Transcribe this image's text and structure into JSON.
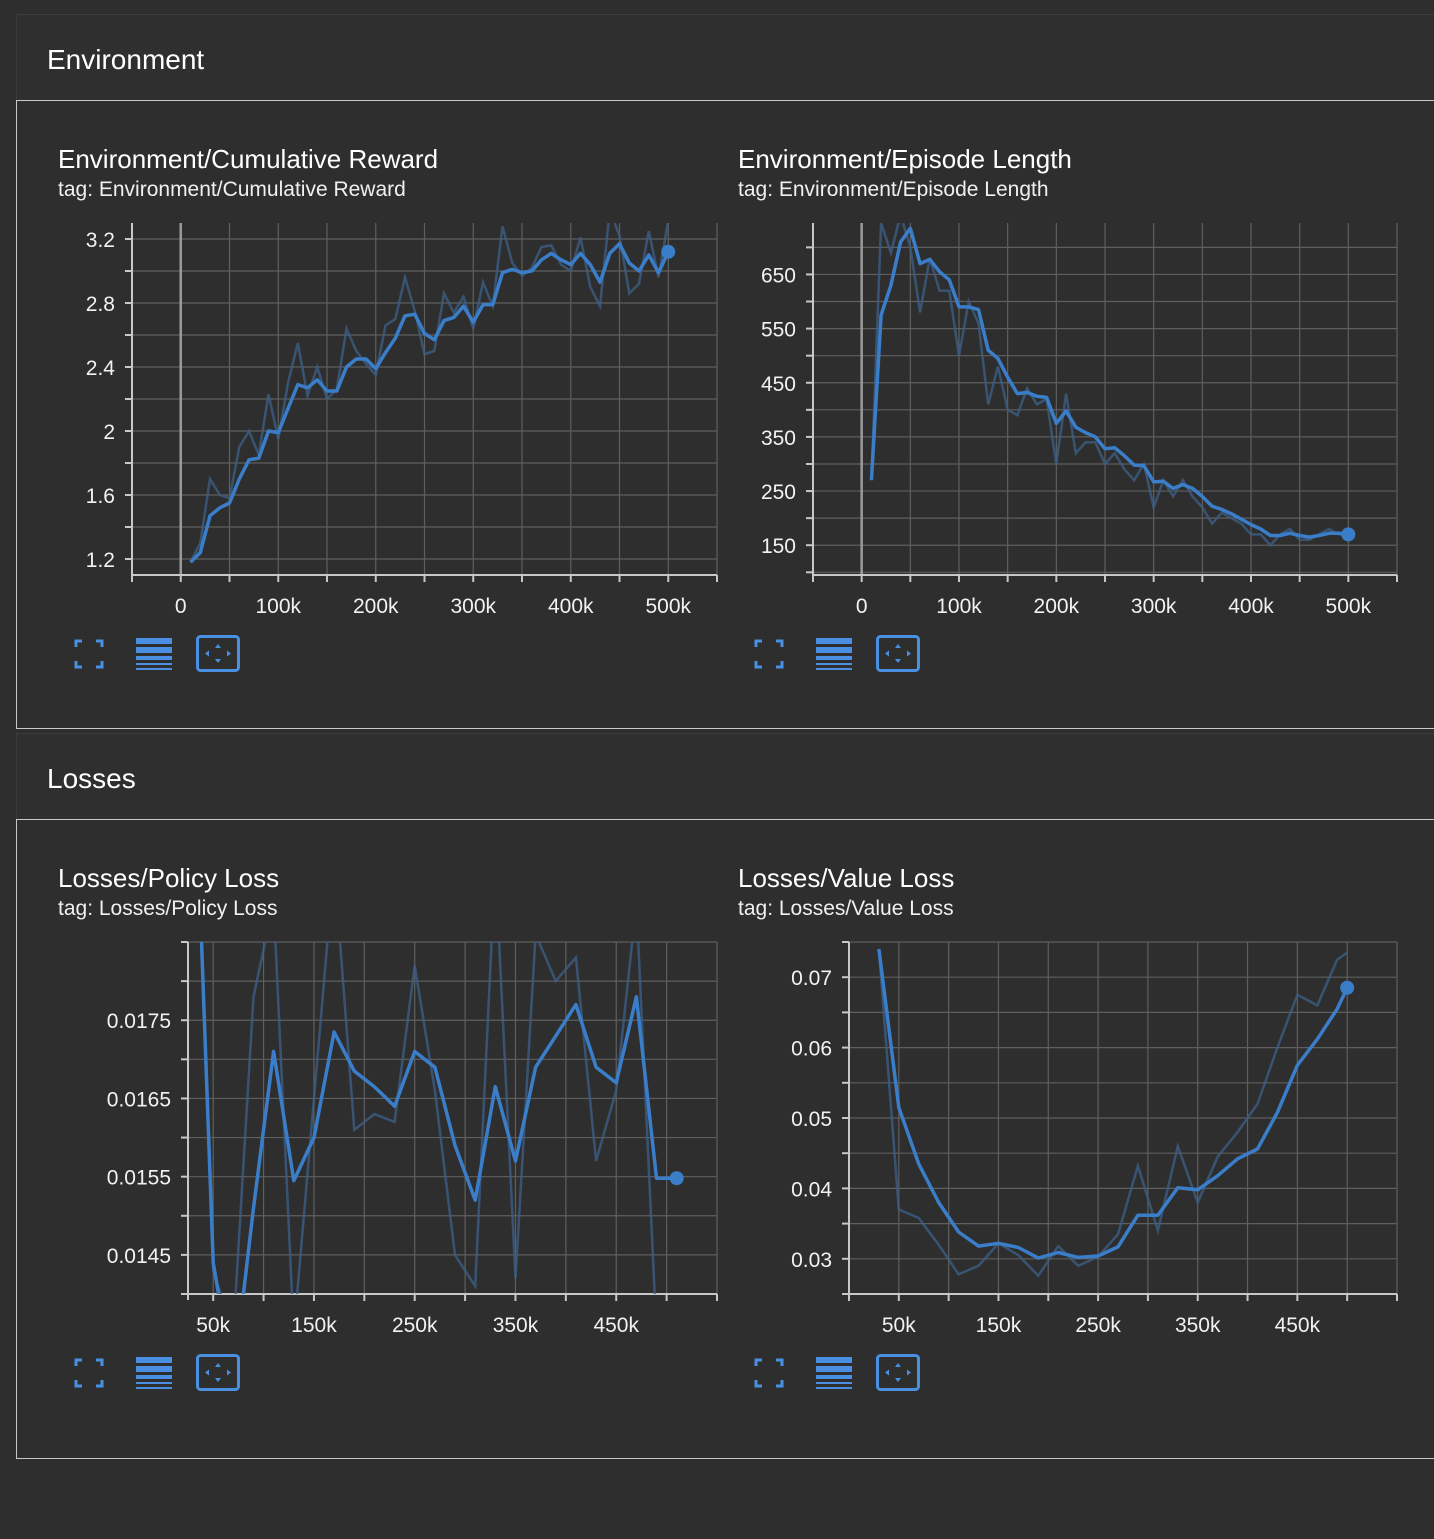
{
  "sections": [
    {
      "title": "Environment"
    },
    {
      "title": "Losses"
    }
  ],
  "cards": [
    {
      "title": "Environment/Cumulative Reward",
      "tag": "tag: Environment/Cumulative Reward",
      "chart_data": {
        "type": "line",
        "title": "Environment/Cumulative Reward",
        "xlim": [
          -50000,
          550000
        ],
        "ylim": [
          1.1,
          3.3
        ],
        "xticks": [
          0,
          100000,
          200000,
          300000,
          400000,
          500000
        ],
        "xtick_labels": [
          "0",
          "100k",
          "200k",
          "300k",
          "400k",
          "500k"
        ],
        "yticks": [
          1.2,
          1.6,
          2.0,
          2.4,
          2.8,
          3.2
        ],
        "ytick_labels": [
          "1.2",
          "1.6",
          "2",
          "2.4",
          "2.8",
          "3.2"
        ],
        "show_zero_line": true,
        "grid": true,
        "series": [
          {
            "smoothed": true,
            "x": [
              10000,
              20000,
              30000,
              40000,
              50000,
              60000,
              70000,
              80000,
              90000,
              100000,
              110000,
              120000,
              130000,
              140000,
              150000,
              160000,
              170000,
              180000,
              190000,
              200000,
              210000,
              220000,
              230000,
              240000,
              250000,
              260000,
              270000,
              280000,
              290000,
              300000,
              310000,
              320000,
              330000,
              340000,
              350000,
              360000,
              370000,
              380000,
              390000,
              400000,
              410000,
              420000,
              430000,
              440000,
              450000,
              460000,
              470000,
              480000,
              490000,
              500000
            ],
            "y": [
              1.18,
              1.24,
              1.47,
              1.52,
              1.55,
              1.7,
              1.82,
              1.83,
              2.0,
              1.99,
              2.14,
              2.29,
              2.27,
              2.32,
              2.25,
              2.25,
              2.4,
              2.45,
              2.45,
              2.39,
              2.49,
              2.58,
              2.72,
              2.73,
              2.61,
              2.57,
              2.69,
              2.71,
              2.78,
              2.68,
              2.79,
              2.79,
              2.99,
              3.01,
              2.99,
              3.0,
              3.07,
              3.11,
              3.07,
              3.04,
              3.11,
              3.04,
              2.93,
              3.11,
              3.17,
              3.05,
              3.0,
              3.1,
              2.99,
              3.12
            ],
            "raw_y": [
              1.18,
              1.3,
              1.7,
              1.6,
              1.58,
              1.9,
              2.0,
              1.85,
              2.23,
              1.95,
              2.3,
              2.55,
              2.22,
              2.4,
              2.2,
              2.26,
              2.64,
              2.5,
              2.42,
              2.35,
              2.66,
              2.7,
              2.96,
              2.75,
              2.48,
              2.5,
              2.86,
              2.74,
              2.84,
              2.64,
              2.93,
              2.78,
              3.28,
              3.05,
              2.97,
              3.02,
              3.15,
              3.16,
              3.04,
              3.0,
              3.21,
              2.9,
              2.78,
              3.38,
              3.22,
              2.86,
              2.92,
              3.25,
              2.96,
              3.32
            ]
          }
        ]
      }
    },
    {
      "title": "Environment/Episode Length",
      "tag": "tag: Environment/Episode Length",
      "chart_data": {
        "type": "line",
        "title": "Environment/Episode Length",
        "xlim": [
          -50000,
          550000
        ],
        "ylim": [
          95,
          745
        ],
        "xticks": [
          0,
          100000,
          200000,
          300000,
          400000,
          500000
        ],
        "xtick_labels": [
          "0",
          "100k",
          "200k",
          "300k",
          "400k",
          "500k"
        ],
        "yticks": [
          150,
          250,
          350,
          450,
          550,
          650
        ],
        "ytick_labels": [
          "150",
          "250",
          "350",
          "450",
          "550",
          "650"
        ],
        "show_zero_line": true,
        "grid": true,
        "series": [
          {
            "smoothed": true,
            "x": [
              10000,
              20000,
              30000,
              40000,
              50000,
              60000,
              70000,
              80000,
              90000,
              100000,
              110000,
              120000,
              130000,
              140000,
              150000,
              160000,
              170000,
              180000,
              190000,
              200000,
              210000,
              220000,
              230000,
              240000,
              250000,
              260000,
              270000,
              280000,
              290000,
              300000,
              310000,
              320000,
              330000,
              340000,
              350000,
              360000,
              370000,
              380000,
              390000,
              400000,
              410000,
              420000,
              430000,
              440000,
              450000,
              460000,
              470000,
              480000,
              490000,
              500000
            ],
            "y": [
              270,
              575,
              630,
              710,
              735,
              670,
              678,
              655,
              640,
              590,
              590,
              585,
              510,
              495,
              460,
              430,
              432,
              425,
              423,
              375,
              398,
              368,
              358,
              350,
              328,
              330,
              315,
              298,
              297,
              267,
              268,
              255,
              262,
              255,
              240,
              222,
              216,
              208,
              198,
              188,
              180,
              168,
              168,
              172,
              168,
              165,
              168,
              172,
              172,
              170
            ],
            "raw_y": [
              270,
              745,
              690,
              760,
              700,
              580,
              680,
              620,
              620,
              500,
              600,
              560,
              410,
              480,
              400,
              390,
              440,
              410,
              420,
              300,
              430,
              320,
              340,
              340,
              300,
              320,
              290,
              270,
              300,
              220,
              270,
              240,
              270,
              240,
              220,
              190,
              210,
              200,
              190,
              170,
              170,
              150,
              170,
              180,
              160,
              160,
              170,
              180,
              170,
              170
            ]
          }
        ]
      }
    },
    {
      "title": "Losses/Policy Loss",
      "tag": "tag: Losses/Policy Loss",
      "chart_data": {
        "type": "line",
        "title": "Losses/Policy Loss",
        "xlim": [
          25000,
          550000
        ],
        "ylim": [
          0.014,
          0.0185
        ],
        "xticks": [
          50000,
          150000,
          250000,
          350000,
          450000
        ],
        "xtick_labels": [
          "50k",
          "150k",
          "250k",
          "350k",
          "450k"
        ],
        "yticks": [
          0.0145,
          0.0155,
          0.0165,
          0.0175
        ],
        "ytick_labels": [
          "0.0145",
          "0.0155",
          "0.0165",
          "0.0175"
        ],
        "show_zero_line": false,
        "grid": true,
        "series": [
          {
            "smoothed": true,
            "x": [
              30000,
              50000,
              70000,
              90000,
              110000,
              130000,
              150000,
              170000,
              190000,
              210000,
              230000,
              250000,
              270000,
              290000,
              310000,
              330000,
              350000,
              370000,
              390000,
              410000,
              430000,
              450000,
              470000,
              490000,
              510000
            ],
            "y": [
              0.0215,
              0.0144,
              0.0129,
              0.0151,
              0.0171,
              0.01545,
              0.016,
              0.01735,
              0.01685,
              0.01665,
              0.0164,
              0.0171,
              0.0169,
              0.0159,
              0.0152,
              0.01665,
              0.0157,
              0.0169,
              0.0173,
              0.0177,
              0.0169,
              0.0167,
              0.0178,
              0.01548,
              0.01548
            ],
            "raw_y": [
              0.0215,
              0.0143,
              0.0135,
              0.0178,
              0.019,
              0.0135,
              0.0165,
              0.0195,
              0.0161,
              0.0163,
              0.0162,
              0.0182,
              0.0166,
              0.0145,
              0.0141,
              0.0195,
              0.0142,
              0.0186,
              0.018,
              0.0183,
              0.0157,
              0.0166,
              0.019,
              0.0135,
              0.0135
            ]
          }
        ]
      }
    },
    {
      "title": "Losses/Value Loss",
      "tag": "tag: Losses/Value Loss",
      "chart_data": {
        "type": "line",
        "title": "Losses/Value Loss",
        "xlim": [
          0,
          550000
        ],
        "ylim": [
          0.025,
          0.075
        ],
        "xticks": [
          50000,
          150000,
          250000,
          350000,
          450000
        ],
        "xtick_labels": [
          "50k",
          "150k",
          "250k",
          "350k",
          "450k"
        ],
        "yticks": [
          0.03,
          0.04,
          0.05,
          0.06,
          0.07
        ],
        "ytick_labels": [
          "0.03",
          "0.04",
          "0.05",
          "0.06",
          "0.07"
        ],
        "show_zero_line": false,
        "grid": true,
        "series": [
          {
            "smoothed": true,
            "x": [
              30000,
              50000,
              70000,
              90000,
              110000,
              130000,
              150000,
              170000,
              190000,
              210000,
              230000,
              250000,
              270000,
              290000,
              310000,
              330000,
              350000,
              370000,
              390000,
              410000,
              430000,
              450000,
              470000,
              490000,
              500000
            ],
            "y": [
              0.074,
              0.0515,
              0.0435,
              0.038,
              0.0338,
              0.0318,
              0.0322,
              0.0316,
              0.0301,
              0.0309,
              0.0302,
              0.0304,
              0.0317,
              0.0362,
              0.0362,
              0.0401,
              0.0398,
              0.0418,
              0.0442,
              0.0456,
              0.0508,
              0.0575,
              0.0612,
              0.0655,
              0.0685
            ],
            "raw_y": [
              0.074,
              0.037,
              0.0358,
              0.032,
              0.0278,
              0.029,
              0.0322,
              0.0305,
              0.0276,
              0.0318,
              0.029,
              0.0303,
              0.0335,
              0.0432,
              0.034,
              0.046,
              0.038,
              0.0445,
              0.048,
              0.052,
              0.06,
              0.0675,
              0.066,
              0.0725,
              0.0735
            ]
          }
        ]
      }
    }
  ],
  "toolbar": {
    "icons": [
      "fullscreen-icon",
      "toggle-log-icon",
      "fit-domain-icon"
    ]
  },
  "colors": {
    "line": "#3a7ec9",
    "raw_line": "#3c5e83",
    "grid": "#5f5f5f",
    "axis": "#c8c8c8",
    "zero_line": "#9a9a9a",
    "icon": "#4a90e2"
  }
}
